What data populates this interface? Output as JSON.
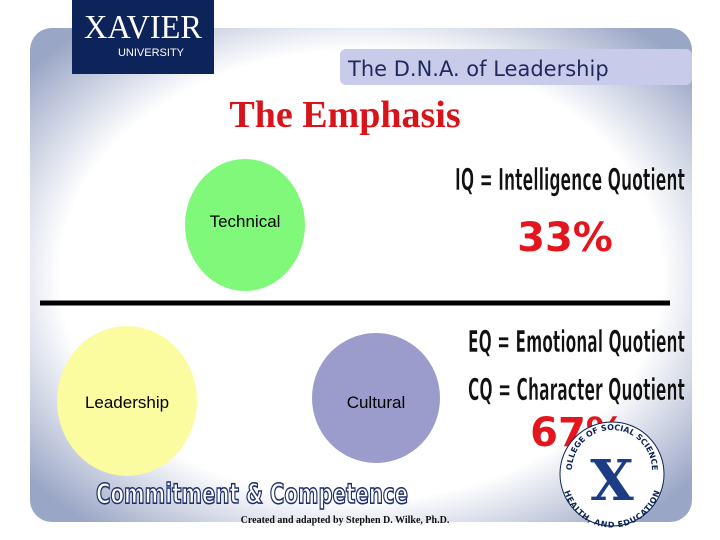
{
  "logo": {
    "name": "XAVIER",
    "subtitle": "UNIVERSITY"
  },
  "banner": "The D.N.A. of Leadership",
  "title": "The Emphasis",
  "top": {
    "label": "Technical",
    "formula": "IQ = Intelligence Quotient",
    "share": "33%"
  },
  "bottom": {
    "labels": [
      "Leadership",
      "Cultural"
    ],
    "formulas": [
      "EQ = Emotional Quotient",
      "CQ = Character Quotient"
    ],
    "share": "67%"
  },
  "slogan": "Commitment & Competence",
  "badge": {
    "top": "COLLEGE OF SOCIAL SCIENCES",
    "bottom": "HEALTH, AND EDUCATION",
    "mark": "X"
  },
  "credit": "Created and adapted by Stephen D. Wilke, Ph.D."
}
